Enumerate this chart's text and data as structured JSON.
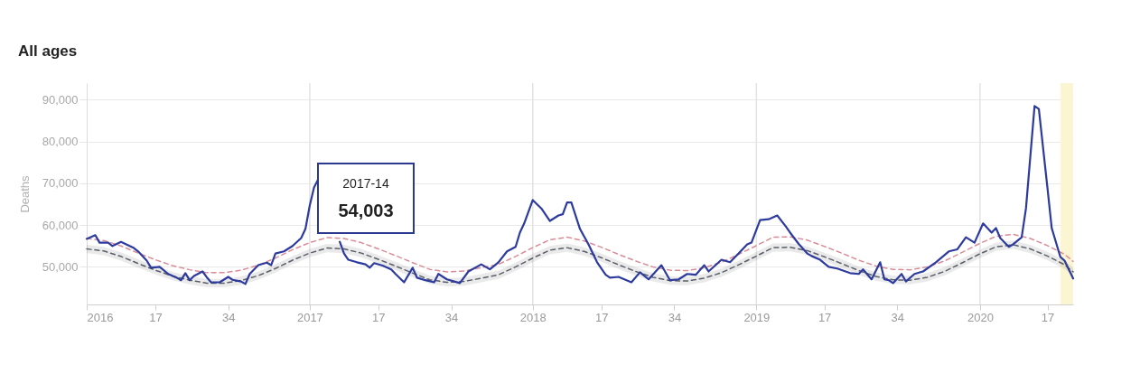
{
  "chart_data": {
    "type": "line",
    "title": "All ages",
    "ylabel": "Deaths",
    "xlim": [
      "2016-01-04",
      "2020-06-01"
    ],
    "ylim": [
      41000,
      94000
    ],
    "xticks": [
      {
        "value": "2016-01-04",
        "label": "2016"
      },
      {
        "value": "2016-04-25",
        "label": "17"
      },
      {
        "value": "2016-08-22",
        "label": "34"
      },
      {
        "value": "2017-01-02",
        "label": "2017"
      },
      {
        "value": "2017-04-24",
        "label": "17"
      },
      {
        "value": "2017-08-21",
        "label": "34"
      },
      {
        "value": "2018-01-01",
        "label": "2018"
      },
      {
        "value": "2018-04-23",
        "label": "17"
      },
      {
        "value": "2018-08-20",
        "label": "34"
      },
      {
        "value": "2019-01-01",
        "label": "2019"
      },
      {
        "value": "2019-04-22",
        "label": "17"
      },
      {
        "value": "2019-08-19",
        "label": "34"
      },
      {
        "value": "2020-01-01",
        "label": "2020"
      },
      {
        "value": "2020-04-20",
        "label": "17"
      }
    ],
    "yticks": [
      {
        "value": 50000,
        "label": "50,000"
      },
      {
        "value": 60000,
        "label": "60,000"
      },
      {
        "value": 70000,
        "label": "70,000"
      },
      {
        "value": 80000,
        "label": "80,000"
      },
      {
        "value": 90000,
        "label": "90,000"
      }
    ],
    "grid": "y",
    "ref_lines": [
      {
        "axis": "x",
        "value": "2017-01-02",
        "color": "#e3e3e3"
      },
      {
        "axis": "x",
        "value": "2018-01-01",
        "color": "#e3e3e3"
      },
      {
        "axis": "x",
        "value": "2019-01-01",
        "color": "#e3e3e3"
      },
      {
        "axis": "x",
        "value": "2020-01-01",
        "color": "#e3e3e3"
      }
    ],
    "bands": [
      {
        "axis": "x",
        "from": "2020-05-11",
        "to": "2020-06-01",
        "color": "#fcf5d3"
      }
    ],
    "annotations": [
      "2017-14",
      "54,003"
    ],
    "series": [
      {
        "color": "#5a6068",
        "line_style": "dashed",
        "x": [
          "2016-01-04",
          "2016-02-01",
          "2016-02-29",
          "2016-03-28",
          "2016-04-25",
          "2016-05-23",
          "2016-06-20",
          "2016-07-18",
          "2016-08-15",
          "2016-09-12",
          "2016-10-10",
          "2016-11-07",
          "2016-12-05",
          "2017-01-02",
          "2017-01-30",
          "2017-02-27",
          "2017-03-27",
          "2017-04-24",
          "2017-05-22",
          "2017-06-19",
          "2017-07-17",
          "2017-08-14",
          "2017-09-11",
          "2017-10-09",
          "2017-11-06",
          "2017-12-04",
          "2018-01-01",
          "2018-01-29",
          "2018-02-26",
          "2018-03-26",
          "2018-04-23",
          "2018-05-21",
          "2018-06-18",
          "2018-07-16",
          "2018-08-13",
          "2018-09-10",
          "2018-10-08",
          "2018-11-05",
          "2018-12-03",
          "2018-12-31",
          "2019-01-28",
          "2019-02-25",
          "2019-03-25",
          "2019-04-22",
          "2019-05-20",
          "2019-06-17",
          "2019-07-15",
          "2019-08-12",
          "2019-09-09",
          "2019-10-07",
          "2019-11-04",
          "2019-12-02",
          "2019-12-30",
          "2020-01-27",
          "2020-02-24",
          "2020-03-23",
          "2020-04-20",
          "2020-05-18",
          "2020-06-01"
        ],
        "values": [
          54300,
          53800,
          52500,
          50800,
          49200,
          47800,
          46800,
          46100,
          46100,
          46700,
          47900,
          49600,
          51600,
          53300,
          54500,
          54300,
          53300,
          51800,
          50200,
          48500,
          46900,
          46300,
          46500,
          47300,
          48100,
          50000,
          52100,
          54000,
          54600,
          53700,
          52200,
          50500,
          48900,
          47500,
          46700,
          46600,
          47300,
          48600,
          50500,
          52500,
          54600,
          54700,
          53900,
          52400,
          50800,
          49100,
          47700,
          46900,
          46800,
          47500,
          48900,
          50900,
          53000,
          54800,
          55300,
          54300,
          52600,
          50500,
          48800
        ],
        "lower": [
          53300,
          52800,
          51500,
          49800,
          48200,
          46800,
          45800,
          45100,
          45100,
          45700,
          46900,
          48600,
          50600,
          52300,
          53500,
          53300,
          52300,
          50800,
          49200,
          47500,
          45900,
          45300,
          45500,
          46300,
          47100,
          49000,
          51100,
          53000,
          53600,
          52700,
          51200,
          49500,
          47900,
          46500,
          45700,
          45600,
          46300,
          47600,
          49500,
          51500,
          53600,
          53700,
          52900,
          51400,
          49800,
          48100,
          46700,
          45900,
          45800,
          46500,
          47900,
          49900,
          52000,
          53800,
          54300,
          53300,
          51600,
          49500,
          47800
        ],
        "upper": [
          55300,
          54800,
          53500,
          51800,
          50200,
          48800,
          47800,
          47100,
          47100,
          47700,
          48900,
          50600,
          52600,
          54300,
          55500,
          55300,
          54300,
          52800,
          51200,
          49500,
          47900,
          47300,
          47500,
          48300,
          49100,
          51000,
          53100,
          55000,
          55600,
          54700,
          53200,
          51500,
          49900,
          48500,
          47700,
          47600,
          48300,
          49600,
          51500,
          53500,
          55600,
          55700,
          54900,
          53400,
          51800,
          50100,
          48700,
          47900,
          47800,
          48500,
          49900,
          51900,
          54000,
          55800,
          56300,
          55300,
          53600,
          51500,
          49800
        ]
      },
      {
        "color": "#d98c98",
        "line_style": "dashed",
        "x": [
          "2016-01-04",
          "2016-02-01",
          "2016-02-29",
          "2016-03-28",
          "2016-04-25",
          "2016-05-23",
          "2016-06-20",
          "2016-07-18",
          "2016-08-15",
          "2016-09-12",
          "2016-10-10",
          "2016-11-07",
          "2016-12-05",
          "2017-01-02",
          "2017-01-30",
          "2017-02-27",
          "2017-03-27",
          "2017-04-24",
          "2017-05-22",
          "2017-06-19",
          "2017-07-17",
          "2017-08-14",
          "2017-09-11",
          "2017-10-09",
          "2017-11-06",
          "2017-12-04",
          "2018-01-01",
          "2018-01-29",
          "2018-02-26",
          "2018-03-26",
          "2018-04-23",
          "2018-05-21",
          "2018-06-18",
          "2018-07-16",
          "2018-08-13",
          "2018-09-10",
          "2018-10-08",
          "2018-11-05",
          "2018-12-03",
          "2018-12-31",
          "2019-01-28",
          "2019-02-25",
          "2019-03-25",
          "2019-04-22",
          "2019-05-20",
          "2019-06-17",
          "2019-07-15",
          "2019-08-12",
          "2019-09-09",
          "2019-10-07",
          "2019-11-04",
          "2019-12-02",
          "2019-12-30",
          "2020-01-27",
          "2020-02-24",
          "2020-03-23",
          "2020-04-20",
          "2020-05-18",
          "2020-06-01"
        ],
        "values": [
          56800,
          56300,
          55000,
          53300,
          51700,
          50300,
          49300,
          48600,
          48600,
          49200,
          50400,
          52100,
          54100,
          55800,
          57000,
          56800,
          55800,
          54300,
          52700,
          51000,
          49400,
          48800,
          49000,
          49800,
          50600,
          52500,
          54600,
          56500,
          57100,
          56200,
          54700,
          53000,
          51400,
          50000,
          49200,
          49100,
          49800,
          51100,
          53000,
          55000,
          57100,
          57200,
          56400,
          54900,
          53300,
          51600,
          50200,
          49400,
          49300,
          50000,
          51400,
          53400,
          55500,
          57300,
          57800,
          56800,
          55100,
          53000,
          51300
        ]
      },
      {
        "color": "#2d3a9e",
        "line_style": "solid",
        "x": [
          "2016-01-04",
          "2016-01-18",
          "2016-01-25",
          "2016-02-08",
          "2016-02-15",
          "2016-02-29",
          "2016-03-07",
          "2016-03-21",
          "2016-03-28",
          "2016-04-11",
          "2016-04-18",
          "2016-05-02",
          "2016-05-16",
          "2016-05-30",
          "2016-06-06",
          "2016-06-13",
          "2016-06-20",
          "2016-06-27",
          "2016-07-11",
          "2016-07-18",
          "2016-07-25",
          "2016-08-08",
          "2016-08-22",
          "2016-08-29",
          "2016-09-12",
          "2016-09-19",
          "2016-09-26",
          "2016-10-10",
          "2016-10-24",
          "2016-10-31",
          "2016-11-07",
          "2016-11-21",
          "2016-12-05",
          "2016-12-19",
          "2016-12-26",
          "2017-01-02",
          "2017-01-09",
          "2017-01-16",
          "2017-01-23",
          "2017-02-06",
          "2017-02-20",
          "2017-02-27",
          "2017-03-06",
          "2017-03-20",
          "2017-04-03",
          "2017-04-10",
          "2017-04-17",
          "2017-05-01",
          "2017-05-15",
          "2017-05-22",
          "2017-06-05",
          "2017-06-19",
          "2017-06-26",
          "2017-07-10",
          "2017-07-24",
          "2017-07-31",
          "2017-08-14",
          "2017-09-04",
          "2017-09-18",
          "2017-10-09",
          "2017-10-23",
          "2017-11-06",
          "2017-11-20",
          "2017-12-04",
          "2017-12-11",
          "2017-12-18",
          "2018-01-01",
          "2018-01-15",
          "2018-01-29",
          "2018-02-12",
          "2018-02-19",
          "2018-02-26",
          "2018-03-05",
          "2018-03-19",
          "2018-04-02",
          "2018-04-16",
          "2018-04-30",
          "2018-05-07",
          "2018-05-21",
          "2018-06-11",
          "2018-06-25",
          "2018-07-09",
          "2018-07-30",
          "2018-08-13",
          "2018-08-27",
          "2018-09-10",
          "2018-09-24",
          "2018-10-08",
          "2018-10-15",
          "2018-11-05",
          "2018-11-19",
          "2018-12-03",
          "2018-12-17",
          "2018-12-24",
          "2019-01-07",
          "2019-01-21",
          "2019-02-04",
          "2019-02-18",
          "2019-02-25",
          "2019-03-11",
          "2019-03-25",
          "2019-04-01",
          "2019-04-15",
          "2019-04-29",
          "2019-05-13",
          "2019-06-03",
          "2019-06-17",
          "2019-06-24",
          "2019-07-08",
          "2019-07-22",
          "2019-07-29",
          "2019-08-05",
          "2019-08-12",
          "2019-08-26",
          "2019-09-02",
          "2019-09-16",
          "2019-09-30",
          "2019-10-21",
          "2019-11-11",
          "2019-11-25",
          "2019-12-09",
          "2019-12-23",
          "2020-01-06",
          "2020-01-20",
          "2020-01-27",
          "2020-02-03",
          "2020-02-17",
          "2020-02-24",
          "2020-03-09",
          "2020-03-16",
          "2020-03-30",
          "2020-04-06",
          "2020-04-20",
          "2020-04-27",
          "2020-05-11",
          "2020-05-18",
          "2020-06-01"
        ],
        "values": [
          56700,
          57600,
          55800,
          55800,
          55000,
          56000,
          55500,
          54500,
          53700,
          51500,
          49800,
          50000,
          48300,
          47400,
          46800,
          48500,
          46800,
          47800,
          48900,
          47500,
          46300,
          46300,
          47600,
          46900,
          46500,
          45900,
          48300,
          50400,
          51000,
          50400,
          53200,
          53700,
          55000,
          56900,
          59100,
          64700,
          69000,
          71000,
          null,
          null,
          56000,
          53200,
          51700,
          51100,
          50600,
          49800,
          50900,
          50300,
          49400,
          48300,
          46300,
          49800,
          47400,
          46800,
          46300,
          48300,
          47000,
          46100,
          48900,
          50600,
          49400,
          51100,
          53700,
          54800,
          58200,
          60400,
          66000,
          64000,
          61000,
          62300,
          62600,
          65400,
          65400,
          59100,
          55400,
          51100,
          48100,
          47400,
          47600,
          46300,
          48700,
          47000,
          50400,
          46800,
          47000,
          48300,
          48100,
          50400,
          48900,
          51700,
          51100,
          53200,
          55400,
          55800,
          61200,
          61400,
          62300,
          59700,
          58200,
          55500,
          53200,
          52600,
          51700,
          50000,
          49600,
          48500,
          48300,
          49400,
          47000,
          51100,
          47000,
          46800,
          46100,
          48300,
          46500,
          48300,
          48900,
          51100,
          53700,
          54200,
          57100,
          55800,
          60400,
          58200,
          59300,
          56900,
          54800,
          55400,
          57100,
          64000,
          88500,
          87800,
          69000,
          59300,
          52400,
          51500,
          47200
        ]
      }
    ]
  }
}
